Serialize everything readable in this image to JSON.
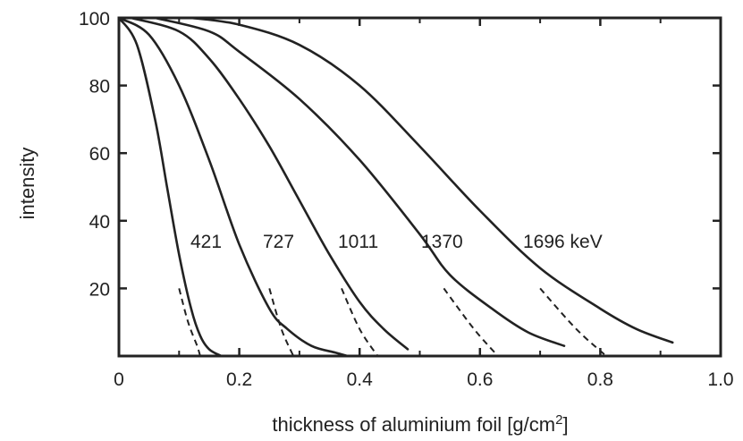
{
  "chart_data": {
    "type": "line",
    "xlabel": "thickness of aluminium foil [g/cm",
    "xlabel_sup": "2",
    "xlabel_end": "]",
    "ylabel": "intensity",
    "xlim": [
      0,
      1.0
    ],
    "ylim": [
      0,
      100
    ],
    "x_ticks": [
      0,
      0.2,
      0.4,
      0.6,
      0.8,
      1.0
    ],
    "x_tick_labels": [
      "0",
      "0.2",
      "0.4",
      "0.6",
      "0.8",
      "1.0"
    ],
    "y_ticks": [
      20,
      40,
      60,
      80,
      100
    ],
    "y_tick_labels": [
      "20",
      "40",
      "60",
      "80",
      "100"
    ],
    "grid": false,
    "series": [
      {
        "name": "421",
        "x": [
          0.0,
          0.03,
          0.06,
          0.08,
          0.1,
          0.12,
          0.135,
          0.15,
          0.17
        ],
        "y": [
          100,
          92,
          70,
          50,
          30,
          14,
          6,
          2,
          0
        ],
        "dashed_x": [
          0.1,
          0.115,
          0.13,
          0.135
        ],
        "dashed_y": [
          20,
          10,
          3,
          0
        ]
      },
      {
        "name": "727",
        "x": [
          0.0,
          0.05,
          0.1,
          0.15,
          0.2,
          0.25,
          0.28,
          0.32,
          0.36,
          0.38
        ],
        "y": [
          100,
          95,
          80,
          58,
          33,
          14,
          8,
          3,
          1,
          0
        ],
        "dashed_x": [
          0.25,
          0.27,
          0.29
        ],
        "dashed_y": [
          20,
          8,
          0
        ]
      },
      {
        "name": "1011",
        "x": [
          0.02,
          0.1,
          0.15,
          0.2,
          0.25,
          0.3,
          0.35,
          0.4,
          0.44,
          0.48
        ],
        "y": [
          100,
          96,
          88,
          76,
          62,
          46,
          30,
          16,
          8,
          2
        ],
        "dashed_x": [
          0.37,
          0.4,
          0.43
        ],
        "dashed_y": [
          20,
          8,
          0
        ]
      },
      {
        "name": "1370",
        "x": [
          0.06,
          0.15,
          0.2,
          0.3,
          0.4,
          0.5,
          0.55,
          0.62,
          0.68,
          0.74
        ],
        "y": [
          100,
          96,
          90,
          76,
          58,
          36,
          24,
          14,
          7,
          3
        ],
        "dashed_x": [
          0.54,
          0.59,
          0.63
        ],
        "dashed_y": [
          20,
          8,
          0
        ]
      },
      {
        "name": "1696 keV",
        "x": [
          0.12,
          0.2,
          0.3,
          0.4,
          0.5,
          0.6,
          0.7,
          0.8,
          0.86,
          0.92
        ],
        "y": [
          100,
          98,
          92,
          80,
          62,
          43,
          26,
          14,
          8,
          4
        ],
        "dashed_x": [
          0.7,
          0.76,
          0.81
        ],
        "dashed_y": [
          20,
          8,
          0
        ]
      }
    ]
  }
}
